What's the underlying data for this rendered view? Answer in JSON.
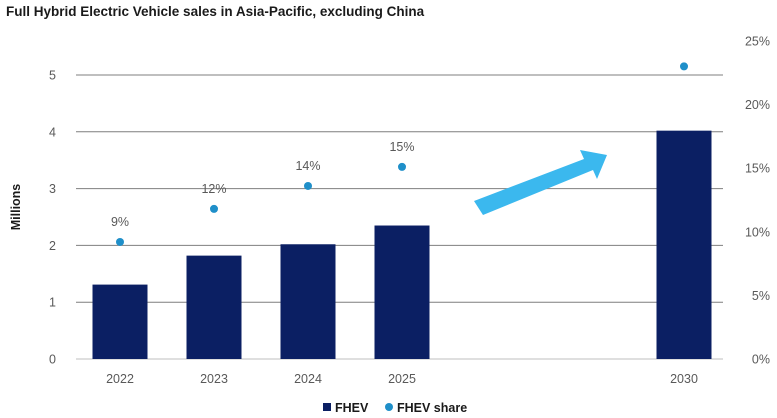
{
  "chart_data": {
    "type": "bar",
    "title": "Full Hybrid Electric Vehicle sales in Asia-Pacific, excluding China",
    "ylabel": "Millions",
    "xlabel": "",
    "categories": [
      "2022",
      "2023",
      "2024",
      "2025",
      "2030"
    ],
    "ylim": [
      0,
      5.6
    ],
    "y_ticks": [
      "0",
      "1",
      "2",
      "3",
      "4",
      "5"
    ],
    "y2lim": [
      0,
      0.25
    ],
    "y2_ticks": [
      "0%",
      "5%",
      "10%",
      "15%",
      "20%",
      "25%"
    ],
    "series": [
      {
        "name": "FHEV",
        "type": "bar",
        "axis": "left",
        "color": "#0b1f63",
        "values": [
          1.31,
          1.82,
          2.02,
          2.35,
          4.02
        ]
      },
      {
        "name": "FHEV share",
        "type": "scatter",
        "axis": "right",
        "color": "#1f8fc9",
        "values": [
          0.092,
          0.118,
          0.136,
          0.151,
          0.23
        ],
        "labels": [
          "9%",
          "12%",
          "14%",
          "15%",
          ""
        ]
      }
    ],
    "annotation": {
      "type": "arrow",
      "color": "#3bb8ee",
      "direction": "up-right"
    },
    "legend": {
      "position": "bottom",
      "entries": [
        "FHEV",
        "FHEV share"
      ]
    },
    "grid": true
  }
}
